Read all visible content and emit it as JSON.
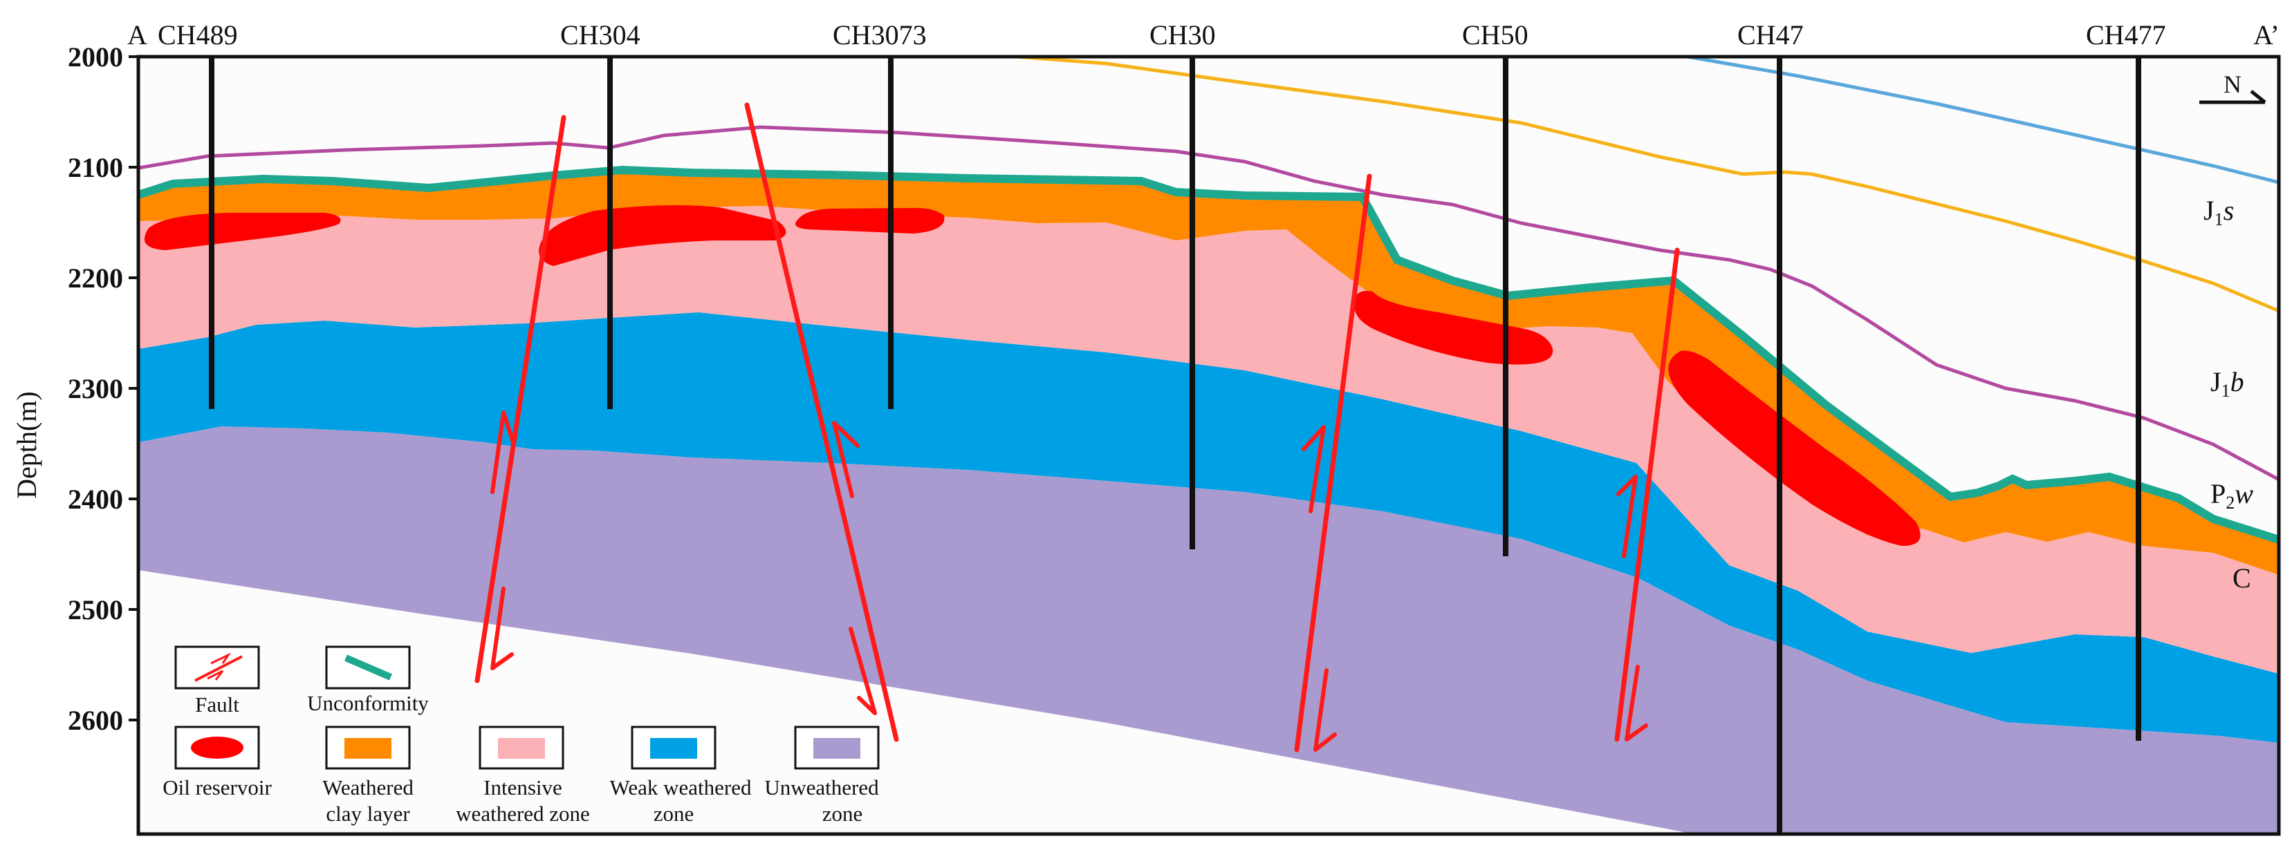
{
  "section": {
    "start_label": "A",
    "end_label": "A’",
    "y_axis_label": "Depth(m)",
    "north_label": "N",
    "depth_ticks": [
      "2000",
      "2100",
      "2200",
      "2300",
      "2400",
      "2500",
      "2600"
    ]
  },
  "wells": [
    {
      "name": "CH489"
    },
    {
      "name": "CH304"
    },
    {
      "name": "CH3073"
    },
    {
      "name": "CH30"
    },
    {
      "name": "CH50"
    },
    {
      "name": "CH47"
    },
    {
      "name": "CH477"
    }
  ],
  "formations": [
    {
      "main": "J",
      "sub": "1",
      "suffix": "s"
    },
    {
      "main": "J",
      "sub": "1",
      "suffix": "b"
    },
    {
      "main": "P",
      "sub": "2",
      "suffix": "w"
    },
    {
      "main": "C",
      "sub": "",
      "suffix": ""
    }
  ],
  "legend": {
    "fault": "Fault",
    "unconformity": "Unconformity",
    "oil_reservoir": "Oil reservoir",
    "weathered_clay_1": "Weathered",
    "weathered_clay_2": "clay  layer",
    "intensive_1": "Intensive",
    "intensive_2": "weathered zone",
    "weak_1": "Weak weathered",
    "weak_2": "zone",
    "unweathered_1": "Unweathered",
    "unweathered_2": "zone"
  },
  "colors": {
    "unweathered": "#a99bcf",
    "weak": "#00a0e4",
    "intensive": "#fcb1b6",
    "clay": "#ff8a00",
    "unconformity": "#1ea88f",
    "oil": "#ff0000",
    "fault": "#ff1a1a",
    "line_purple": "#b24aa0",
    "line_yellow": "#f6b21a",
    "line_blue": "#5aa7dc"
  }
}
